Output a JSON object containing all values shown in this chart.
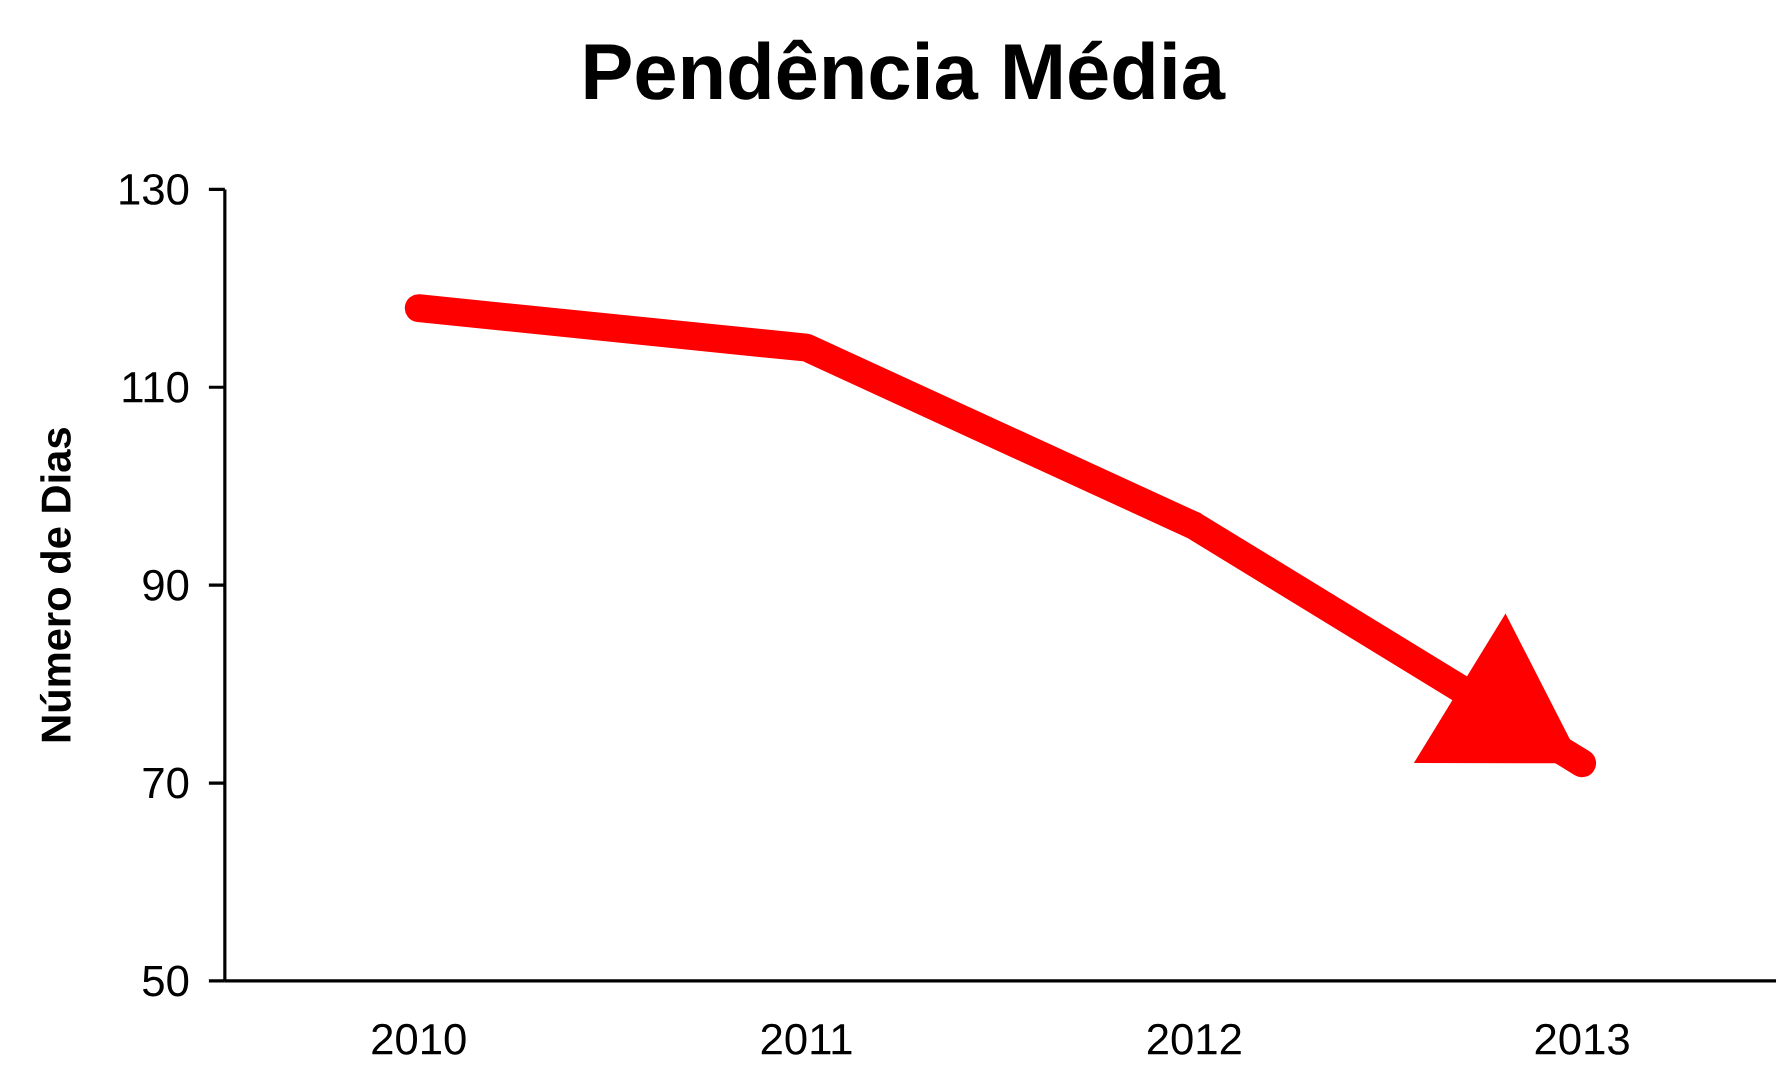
{
  "chart_data": {
    "type": "line",
    "title": "Pendência Média",
    "ylabel": "Número de Dias",
    "categories": [
      "2010",
      "2011",
      "2012",
      "2013"
    ],
    "series": [
      {
        "color": "#ff0000",
        "values": [
          118,
          114,
          96,
          72
        ]
      }
    ],
    "ylim": [
      50,
      130
    ],
    "yticks": [
      50,
      70,
      90,
      110,
      130
    ]
  }
}
